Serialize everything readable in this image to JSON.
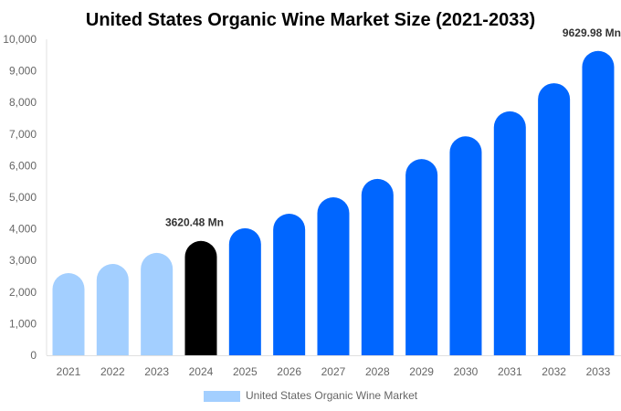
{
  "chart_data": {
    "type": "bar",
    "title": "United States Organic Wine Market Size (2021-2033)",
    "categories": [
      "2021",
      "2022",
      "2023",
      "2024",
      "2025",
      "2026",
      "2027",
      "2028",
      "2029",
      "2030",
      "2031",
      "2032",
      "2033"
    ],
    "series": [
      {
        "name": "United States Organic Wine Market",
        "values": [
          2600,
          2890,
          3240,
          3620.48,
          4020,
          4480,
          5000,
          5580,
          6210,
          6930,
          7720,
          8610,
          9629.98
        ]
      }
    ],
    "bar_colors": [
      "#a3cfff",
      "#a3cfff",
      "#a3cfff",
      "#000000",
      "#0066ff",
      "#0066ff",
      "#0066ff",
      "#0066ff",
      "#0066ff",
      "#0066ff",
      "#0066ff",
      "#0066ff",
      "#0066ff"
    ],
    "legend_color": "#a3cfff",
    "data_labels": [
      {
        "category": "2024",
        "text": "3620.48 Mn"
      },
      {
        "category": "2033",
        "text": "9629.98 Mn"
      }
    ],
    "yticks": [
      "0",
      "1,000",
      "2,000",
      "3,000",
      "4,000",
      "5,000",
      "6,000",
      "7,000",
      "8,000",
      "9,000",
      "10,000"
    ],
    "ylim": [
      0,
      10000
    ],
    "xlabel": "",
    "ylabel": "",
    "grid": false,
    "legend_position": "bottom"
  }
}
